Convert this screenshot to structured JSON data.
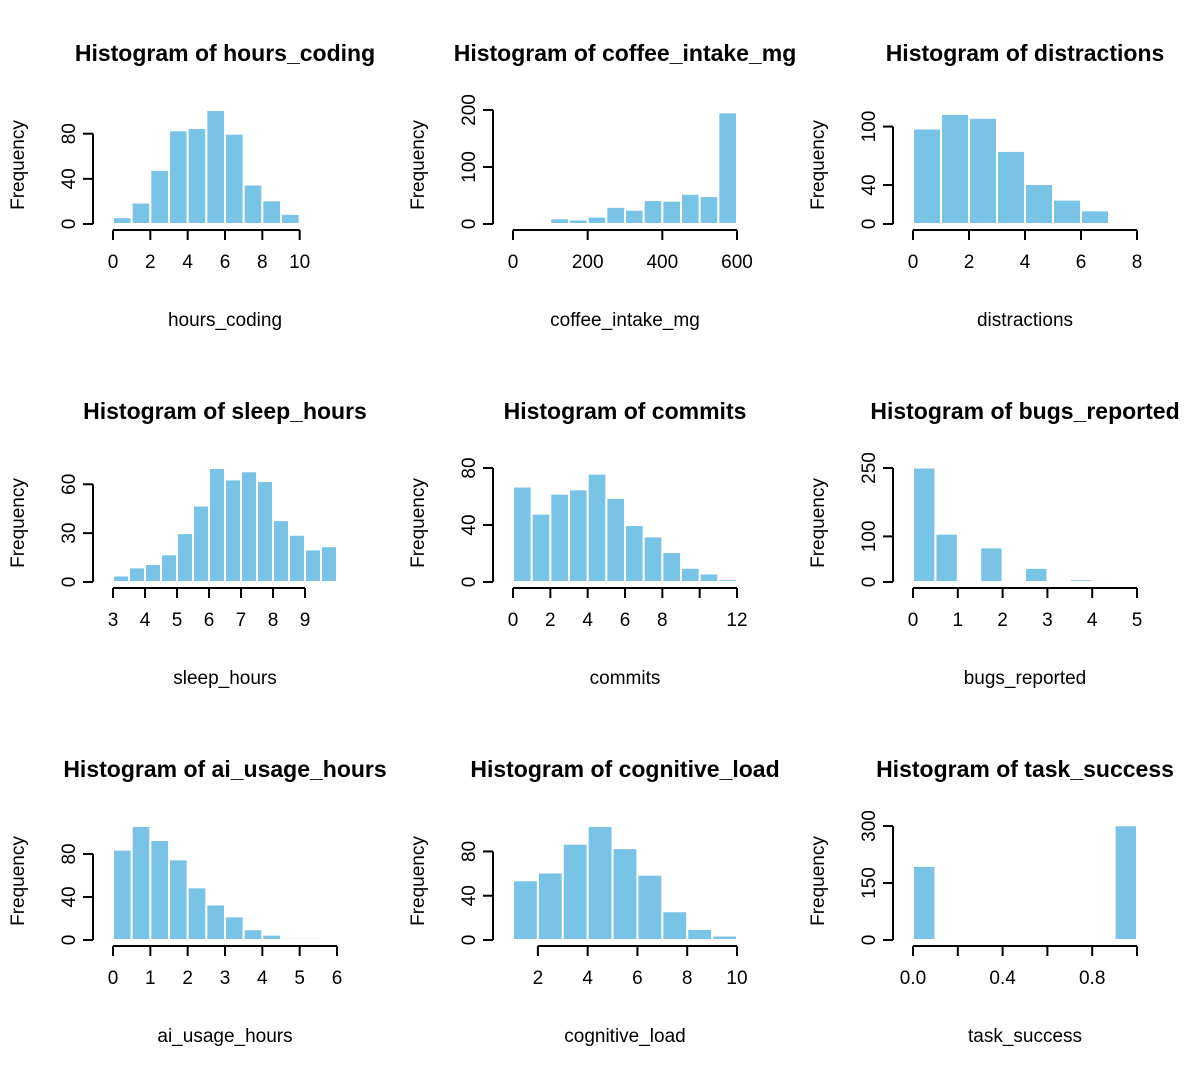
{
  "colors": {
    "bar_fill": "#78c3e6",
    "bar_border": "#ffffff",
    "axis": "#000000",
    "background": "#ffffff"
  },
  "chart_data": [
    {
      "id": "hours_coding",
      "type": "bar",
      "title": "Histogram of hours_coding",
      "xlabel": "hours_coding",
      "ylabel": "Frequency",
      "bins": [
        [
          0,
          1
        ],
        [
          1,
          2
        ],
        [
          2,
          3
        ],
        [
          3,
          4
        ],
        [
          4,
          5
        ],
        [
          5,
          6
        ],
        [
          6,
          7
        ],
        [
          7,
          8
        ],
        [
          8,
          9
        ],
        [
          9,
          10
        ],
        [
          10,
          11
        ],
        [
          11,
          12
        ]
      ],
      "values": [
        6,
        19,
        48,
        83,
        85,
        101,
        80,
        35,
        21,
        9,
        0,
        1
      ],
      "xlim": [
        0,
        12
      ],
      "ylim": [
        0,
        101
      ],
      "xticks": [
        0,
        2,
        4,
        6,
        8,
        10
      ],
      "xtick_labels": [
        "0",
        "2",
        "4",
        "6",
        "8",
        "10"
      ],
      "yticks": [
        0,
        40,
        80
      ],
      "ytick_labels": [
        "0",
        "40",
        "80"
      ]
    },
    {
      "id": "coffee_intake_mg",
      "type": "bar",
      "title": "Histogram of coffee_intake_mg",
      "xlabel": "coffee_intake_mg",
      "ylabel": "Frequency",
      "bins": [
        [
          50,
          100
        ],
        [
          100,
          150
        ],
        [
          150,
          200
        ],
        [
          200,
          250
        ],
        [
          250,
          300
        ],
        [
          300,
          350
        ],
        [
          350,
          400
        ],
        [
          400,
          450
        ],
        [
          450,
          500
        ],
        [
          500,
          550
        ],
        [
          550,
          600
        ]
      ],
      "values": [
        1,
        10,
        8,
        13,
        30,
        25,
        42,
        41,
        53,
        49,
        196
      ],
      "xlim": [
        0,
        600
      ],
      "ylim": [
        0,
        200
      ],
      "xticks": [
        0,
        200,
        400,
        600
      ],
      "xtick_labels": [
        "0",
        "200",
        "400",
        "600"
      ],
      "yticks": [
        0,
        100,
        200
      ],
      "ytick_labels": [
        "0",
        "100",
        "200"
      ]
    },
    {
      "id": "distractions",
      "type": "bar",
      "title": "Histogram of distractions",
      "xlabel": "distractions",
      "ylabel": "Frequency",
      "bins": [
        [
          0,
          1
        ],
        [
          1,
          2
        ],
        [
          2,
          3
        ],
        [
          3,
          4
        ],
        [
          4,
          5
        ],
        [
          5,
          6
        ],
        [
          6,
          7
        ]
      ],
      "values": [
        98,
        113,
        109,
        75,
        41,
        25,
        14
      ],
      "xlim": [
        0,
        8
      ],
      "ylim": [
        0,
        117
      ],
      "xticks": [
        0,
        2,
        4,
        6,
        8
      ],
      "xtick_labels": [
        "0",
        "2",
        "4",
        "6",
        "8"
      ],
      "yticks": [
        0,
        40,
        100
      ],
      "ytick_labels": [
        "0",
        "40",
        "100"
      ]
    },
    {
      "id": "sleep_hours",
      "type": "bar",
      "title": "Histogram of sleep_hours",
      "xlabel": "sleep_hours",
      "ylabel": "Frequency",
      "bins": [
        [
          3,
          3.5
        ],
        [
          3.5,
          4
        ],
        [
          4,
          4.5
        ],
        [
          4.5,
          5
        ],
        [
          5,
          5.5
        ],
        [
          5.5,
          6
        ],
        [
          6,
          6.5
        ],
        [
          6.5,
          7
        ],
        [
          7,
          7.5
        ],
        [
          7.5,
          8
        ],
        [
          8,
          8.5
        ],
        [
          8.5,
          9
        ],
        [
          9,
          9.5
        ],
        [
          9.5,
          10
        ]
      ],
      "values": [
        4,
        9,
        11,
        17,
        30,
        47,
        70,
        63,
        68,
        62,
        38,
        29,
        20,
        22
      ],
      "xlim": [
        3,
        10
      ],
      "ylim": [
        0,
        70
      ],
      "xticks": [
        3,
        4,
        5,
        6,
        7,
        8,
        9
      ],
      "xtick_labels": [
        "3",
        "4",
        "5",
        "6",
        "7",
        "8",
        "9"
      ],
      "yticks": [
        0,
        30,
        60
      ],
      "ytick_labels": [
        "0",
        "30",
        "60"
      ]
    },
    {
      "id": "commits",
      "type": "bar",
      "title": "Histogram of commits",
      "xlabel": "commits",
      "ylabel": "Frequency",
      "bins": [
        [
          0,
          1
        ],
        [
          1,
          2
        ],
        [
          2,
          3
        ],
        [
          3,
          4
        ],
        [
          4,
          5
        ],
        [
          5,
          6
        ],
        [
          6,
          7
        ],
        [
          7,
          8
        ],
        [
          8,
          9
        ],
        [
          9,
          10
        ],
        [
          10,
          11
        ],
        [
          11,
          12
        ]
      ],
      "values": [
        67,
        48,
        62,
        65,
        76,
        59,
        40,
        32,
        21,
        10,
        6,
        2
      ],
      "xlim": [
        0,
        12
      ],
      "ylim": [
        0,
        80
      ],
      "xticks": [
        0,
        2,
        4,
        6,
        8,
        10,
        12
      ],
      "xtick_labels": [
        "0",
        "2",
        "4",
        "6",
        "8",
        "",
        "12"
      ],
      "yticks": [
        0,
        40,
        80
      ],
      "ytick_labels": [
        "0",
        "40",
        "80"
      ]
    },
    {
      "id": "bugs_reported",
      "type": "bar",
      "title": "Histogram of bugs_reported",
      "xlabel": "bugs_reported",
      "ylabel": "Frequency",
      "bins": [
        [
          0,
          0.5
        ],
        [
          0.5,
          1
        ],
        [
          1,
          1.5
        ],
        [
          1.5,
          2
        ],
        [
          2,
          2.5
        ],
        [
          2.5,
          3
        ],
        [
          3,
          3.5
        ],
        [
          3.5,
          4
        ],
        [
          4,
          4.5
        ],
        [
          4.5,
          5
        ]
      ],
      "values": [
        251,
        106,
        0,
        76,
        0,
        31,
        0,
        6,
        0,
        0
      ],
      "xlim": [
        0,
        5
      ],
      "ylim": [
        0,
        250
      ],
      "xticks": [
        0,
        1,
        2,
        3,
        4,
        5
      ],
      "xtick_labels": [
        "0",
        "1",
        "2",
        "3",
        "4",
        "5"
      ],
      "yticks": [
        0,
        100,
        250
      ],
      "ytick_labels": [
        "0",
        "100",
        "250"
      ]
    },
    {
      "id": "ai_usage_hours",
      "type": "bar",
      "title": "Histogram of ai_usage_hours",
      "xlabel": "ai_usage_hours",
      "ylabel": "Frequency",
      "bins": [
        [
          0,
          0.5
        ],
        [
          0.5,
          1
        ],
        [
          1,
          1.5
        ],
        [
          1.5,
          2
        ],
        [
          2,
          2.5
        ],
        [
          2.5,
          3
        ],
        [
          3,
          3.5
        ],
        [
          3.5,
          4
        ],
        [
          4,
          4.5
        ],
        [
          4.5,
          5
        ],
        [
          5,
          5.5
        ],
        [
          5.5,
          6
        ]
      ],
      "values": [
        84,
        106,
        93,
        75,
        49,
        33,
        22,
        10,
        5,
        2,
        2,
        1
      ],
      "xlim": [
        0,
        6
      ],
      "ylim": [
        0,
        106
      ],
      "xticks": [
        0,
        1,
        2,
        3,
        4,
        5,
        6
      ],
      "xtick_labels": [
        "0",
        "1",
        "2",
        "3",
        "4",
        "5",
        "6"
      ],
      "yticks": [
        0,
        40,
        80
      ],
      "ytick_labels": [
        "0",
        "40",
        "80"
      ]
    },
    {
      "id": "cognitive_load",
      "type": "bar",
      "title": "Histogram of cognitive_load",
      "xlabel": "cognitive_load",
      "ylabel": "Frequency",
      "bins": [
        [
          1,
          2
        ],
        [
          2,
          3
        ],
        [
          3,
          4
        ],
        [
          4,
          5
        ],
        [
          5,
          6
        ],
        [
          6,
          7
        ],
        [
          7,
          8
        ],
        [
          8,
          9
        ],
        [
          9,
          10
        ]
      ],
      "values": [
        54,
        61,
        87,
        103,
        83,
        59,
        26,
        10,
        4
      ],
      "xlim": [
        1,
        10
      ],
      "ylim": [
        0,
        103
      ],
      "xticks": [
        2,
        4,
        6,
        8,
        10
      ],
      "xtick_labels": [
        "2",
        "4",
        "6",
        "8",
        "10"
      ],
      "yticks": [
        0,
        40,
        80
      ],
      "ytick_labels": [
        "0",
        "40",
        "80"
      ]
    },
    {
      "id": "task_success",
      "type": "bar",
      "title": "Histogram of task_success",
      "xlabel": "task_success",
      "ylabel": "Frequency",
      "bins": [
        [
          0,
          0.1
        ],
        [
          0.1,
          0.2
        ],
        [
          0.2,
          0.3
        ],
        [
          0.3,
          0.4
        ],
        [
          0.4,
          0.5
        ],
        [
          0.5,
          0.6
        ],
        [
          0.6,
          0.7
        ],
        [
          0.7,
          0.8
        ],
        [
          0.8,
          0.9
        ],
        [
          0.9,
          1
        ]
      ],
      "values": [
        195,
        0,
        0,
        0,
        0,
        0,
        0,
        0,
        0,
        302
      ],
      "xlim": [
        0,
        1
      ],
      "ylim": [
        0,
        300
      ],
      "xticks": [
        0,
        0.2,
        0.4,
        0.6,
        0.8,
        1
      ],
      "xtick_labels": [
        "0.0",
        "",
        "0.4",
        "",
        "0.8",
        ""
      ],
      "yticks": [
        0,
        150,
        300
      ],
      "ytick_labels": [
        "0",
        "150",
        "300"
      ]
    }
  ]
}
